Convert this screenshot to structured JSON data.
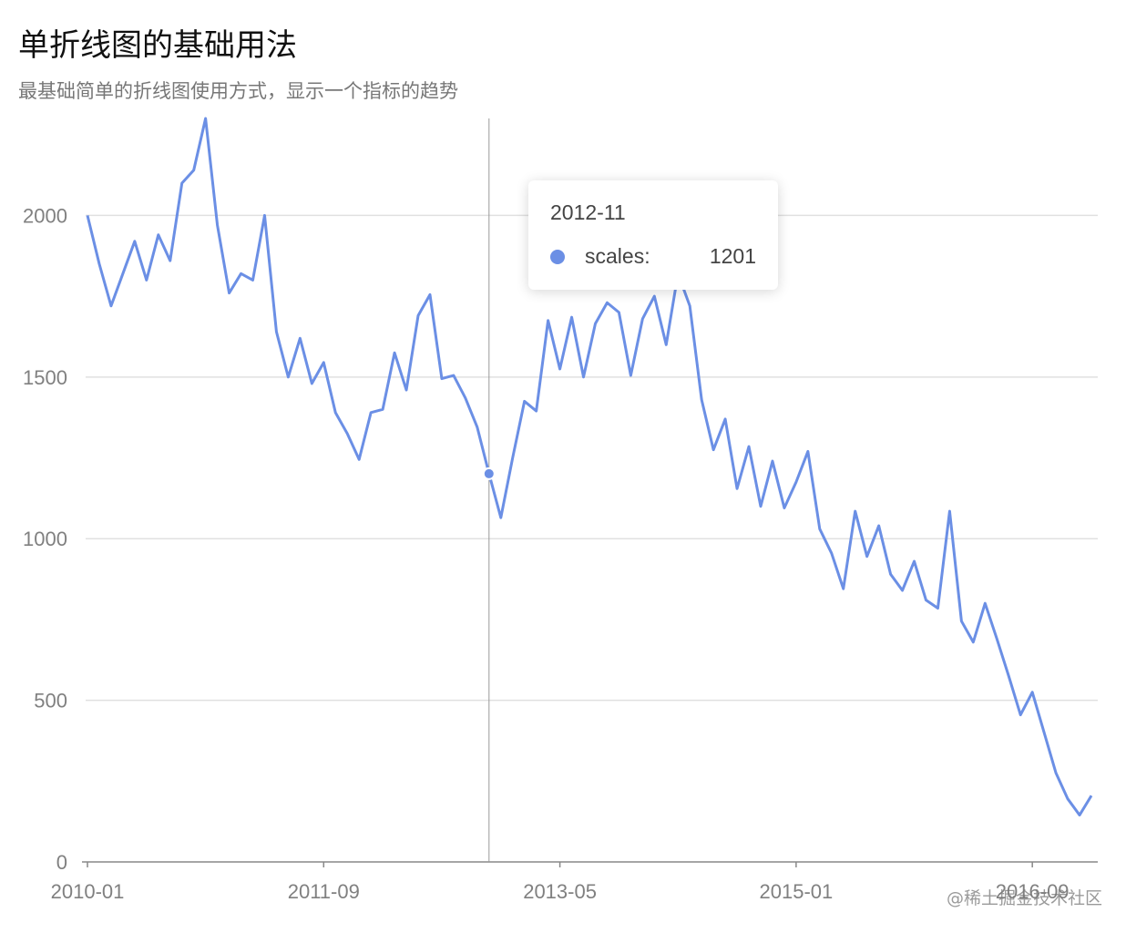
{
  "header": {
    "title": "单折线图的基础用法",
    "subtitle": "最基础简单的折线图使用方式，显示一个指标的趋势"
  },
  "tooltip": {
    "date": "2012-11",
    "series_name": "scales:",
    "value": "1201"
  },
  "watermark": "@稀土掘金技术社区",
  "colors": {
    "line": "#6b8fe5",
    "grid": "#e0e0e0",
    "axis": "#888888",
    "crosshair": "#999999"
  },
  "chart_data": {
    "type": "line",
    "title": "单折线图的基础用法",
    "subtitle": "最基础简单的折线图使用方式，显示一个指标的趋势",
    "x_ticks": [
      "2010-01",
      "2011-09",
      "2013-05",
      "2015-01",
      "2016-09"
    ],
    "y_ticks": [
      "0",
      "500",
      "1000",
      "1500",
      "2000"
    ],
    "ylim": [
      0,
      2300
    ],
    "grid": true,
    "x_start": "2010-01",
    "x_end": "2017-02",
    "highlight": {
      "x": "2012-11",
      "y": 1201
    },
    "series": [
      {
        "values": [
          2000,
          1850,
          1720,
          1820,
          1920,
          1800,
          1940,
          1860,
          2100,
          2140,
          2300,
          1970,
          1760,
          1820,
          1800,
          2000,
          1640,
          1500,
          1620,
          1480,
          1545,
          1390,
          1325,
          1245,
          1390,
          1400,
          1575,
          1460,
          1690,
          1755,
          1495,
          1505,
          1435,
          1345,
          1201,
          1065,
          1250,
          1425,
          1395,
          1675,
          1525,
          1685,
          1500,
          1665,
          1730,
          1700,
          1505,
          1680,
          1750,
          1600,
          1820,
          1720,
          1430,
          1275,
          1370,
          1155,
          1285,
          1100,
          1240,
          1095,
          1175,
          1270,
          1030,
          955,
          845,
          1085,
          945,
          1040,
          890,
          840,
          930,
          810,
          785,
          1085,
          745,
          680,
          800,
          690,
          575,
          455,
          525,
          400,
          275,
          195,
          145,
          205
        ]
      }
    ]
  }
}
